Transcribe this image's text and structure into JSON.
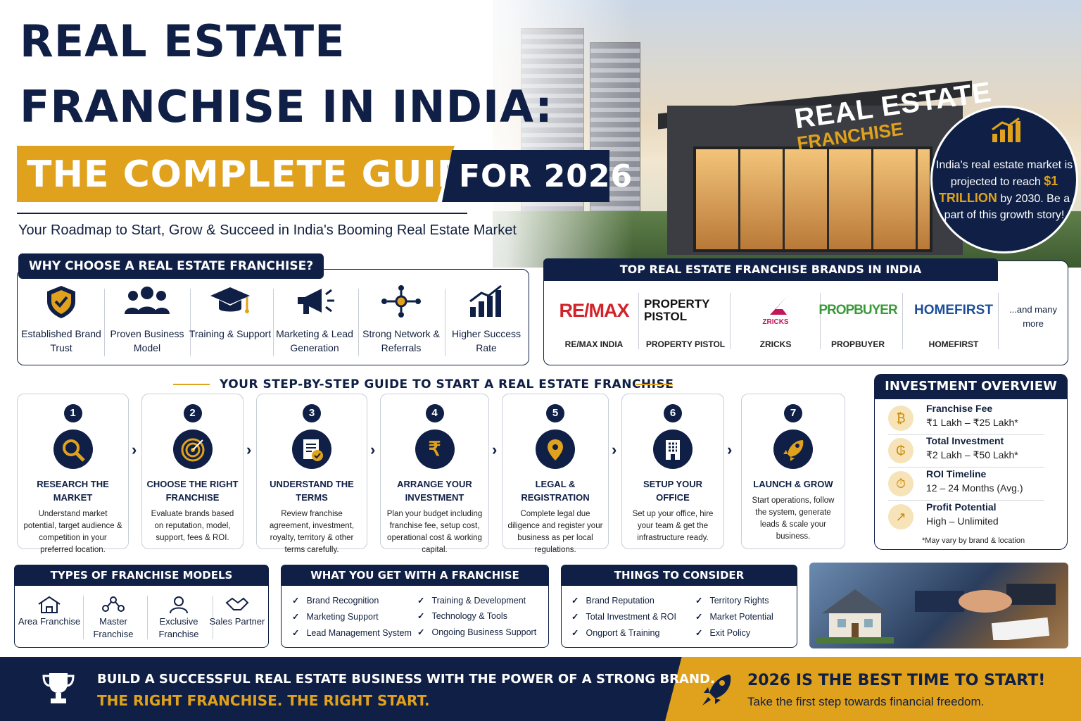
{
  "title": {
    "line1": "REAL ESTATE",
    "line2": "FRANCHISE IN INDIA:",
    "highlight": "THE COMPLETE GUIDE",
    "year": "FOR 2026",
    "subtitle": "Your Roadmap to Start, Grow & Succeed in India's Booming Real Estate Market"
  },
  "hero": {
    "sign_line1": "REAL ESTATE",
    "sign_line2": "FRANCHISE",
    "stat_pre": "India's real estate market is projected to reach",
    "stat_value": "$1 TRILLION",
    "stat_post": "by 2030. Be a part of this growth story!"
  },
  "why": {
    "heading": "WHY CHOOSE A REAL ESTATE FRANCHISE?",
    "items": [
      {
        "label": "Established Brand Trust",
        "icon": "shield-icon"
      },
      {
        "label": "Proven Business Model",
        "icon": "people-icon"
      },
      {
        "label": "Training & Support",
        "icon": "graduation-cap-icon"
      },
      {
        "label": "Marketing & Lead Generation",
        "icon": "megaphone-icon"
      },
      {
        "label": "Strong Network & Referrals",
        "icon": "network-icon"
      },
      {
        "label": "Higher Success Rate",
        "icon": "growth-chart-icon"
      }
    ]
  },
  "brands": {
    "heading": "TOP REAL ESTATE FRANCHISE BRANDS IN INDIA",
    "items": [
      {
        "logo": "RE/MAX",
        "name": "RE/MAX INDIA",
        "color": "#d2232a"
      },
      {
        "logo": "PROPERTY PISTOL",
        "name": "PROPERTY PISTOL",
        "color": "#111111"
      },
      {
        "logo": "ZRICKS",
        "name": "ZRICKS",
        "color": "#c2185b"
      },
      {
        "logo": "PROPBUYER",
        "name": "PROPBUYER",
        "color": "#3a9a3a"
      },
      {
        "logo": "HOMEFIRST",
        "name": "HOMEFIRST",
        "color": "#1c4e9a"
      }
    ],
    "more": "...and many more"
  },
  "steps": {
    "heading": "YOUR STEP-BY-STEP GUIDE TO START A REAL ESTATE FRANCHISE",
    "items": [
      {
        "num": "1",
        "title": "RESEARCH THE MARKET",
        "desc": "Understand market potential, target audience & competition in your preferred location."
      },
      {
        "num": "2",
        "title": "CHOOSE THE RIGHT FRANCHISE",
        "desc": "Evaluate brands based on reputation, model, support, fees & ROI."
      },
      {
        "num": "3",
        "title": "UNDERSTAND THE TERMS",
        "desc": "Review franchise agreement, investment, royalty, territory & other terms carefully."
      },
      {
        "num": "4",
        "title": "ARRANGE YOUR INVESTMENT",
        "desc": "Plan your budget including franchise fee, setup cost, operational cost & working capital."
      },
      {
        "num": "5",
        "title": "LEGAL & REGISTRATION",
        "desc": "Complete legal due diligence and register your business as per local regulations."
      },
      {
        "num": "6",
        "title": "SETUP YOUR OFFICE",
        "desc": "Set up your office, hire your team & get the infrastructure ready."
      },
      {
        "num": "7",
        "title": "LAUNCH & GROW",
        "desc": "Start operations, follow the system, generate leads & scale your business."
      }
    ]
  },
  "investment": {
    "heading": "INVESTMENT OVERVIEW",
    "rows": [
      {
        "label": "Franchise Fee",
        "value": "₹1 Lakh – ₹25 Lakh*"
      },
      {
        "label": "Total Investment",
        "value": "₹2 Lakh – ₹50 Lakh*"
      },
      {
        "label": "ROI Timeline",
        "value": "12 – 24 Months (Avg.)"
      },
      {
        "label": "Profit Potential",
        "value": "High – Unlimited"
      }
    ],
    "note": "*May vary by brand & location"
  },
  "models": {
    "heading": "TYPES OF FRANCHISE MODELS",
    "items": [
      "Area Franchise",
      "Master Franchise",
      "Exclusive Franchise",
      "Sales Partner"
    ]
  },
  "get": {
    "heading": "WHAT YOU GET WITH A FRANCHISE",
    "items": [
      "Brand Recognition",
      "Marketing Support",
      "Lead Management System",
      "Training & Development",
      "Technology & Tools",
      "Ongoing Business Support"
    ]
  },
  "consider": {
    "heading": "THINGS TO CONSIDER",
    "items": [
      "Brand Reputation",
      "Total Investment & ROI",
      "Ongport & Training",
      "Territory Rights",
      "Market Potential",
      "Exit Policy"
    ]
  },
  "footer": {
    "line1": "BUILD A SUCCESSFUL REAL ESTATE BUSINESS WITH THE POWER OF A STRONG BRAND.",
    "line2": "THE RIGHT FRANCHISE. THE RIGHT START.",
    "cta": "2026 IS THE BEST TIME TO START!",
    "cta_sub": "Take the first step towards financial freedom."
  }
}
